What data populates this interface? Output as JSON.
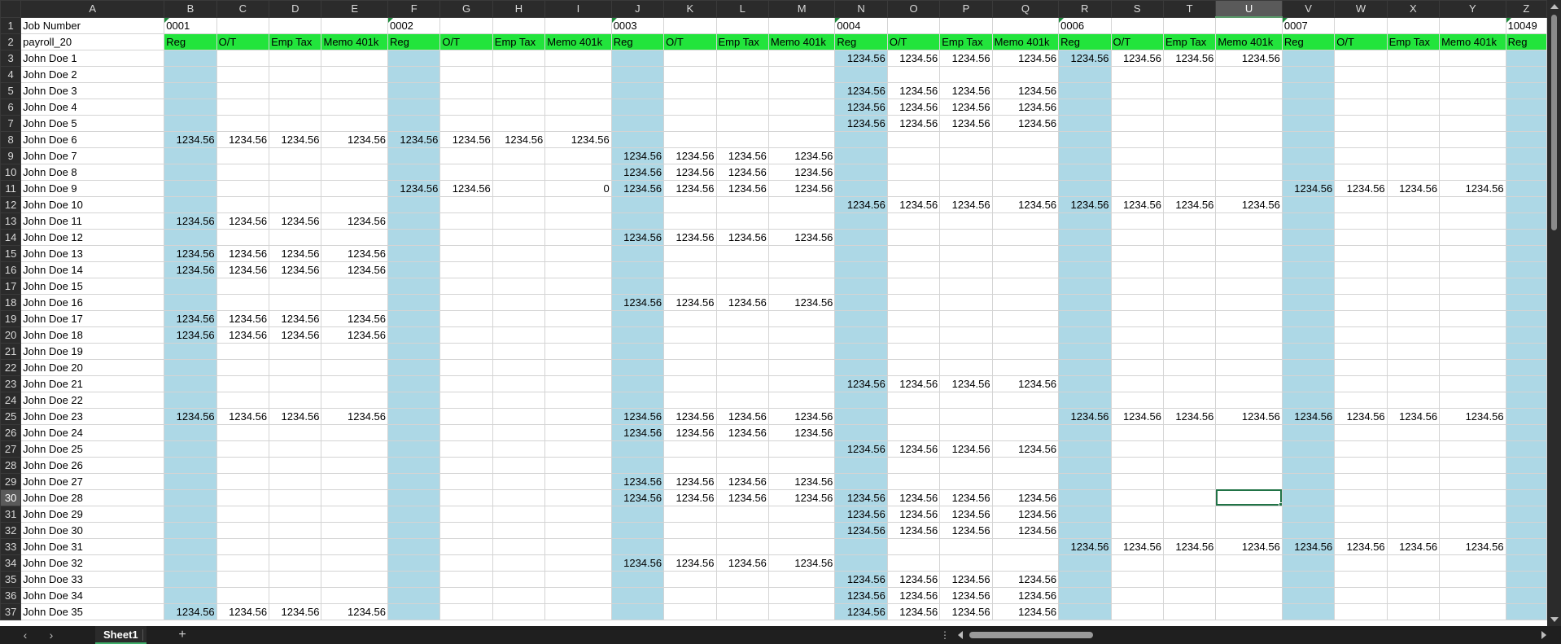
{
  "columns": [
    "A",
    "B",
    "C",
    "D",
    "E",
    "F",
    "G",
    "H",
    "I",
    "J",
    "K",
    "L",
    "M",
    "N",
    "O",
    "P",
    "Q",
    "R",
    "S",
    "T",
    "U",
    "V",
    "W",
    "X",
    "Y",
    "Z"
  ],
  "selected_column": "U",
  "selected_row": 30,
  "active_cell": "U30",
  "job_row": {
    "label": "Job Number",
    "jobs": [
      {
        "col": "B",
        "value": "0001"
      },
      {
        "col": "F",
        "value": "0002"
      },
      {
        "col": "J",
        "value": "0003"
      },
      {
        "col": "N",
        "value": "0004"
      },
      {
        "col": "R",
        "value": "0006"
      },
      {
        "col": "V",
        "value": "0007"
      },
      {
        "col": "Z",
        "value": "10049"
      }
    ]
  },
  "header_row": {
    "label": "payroll_20",
    "cells": [
      "Reg",
      "O/T",
      "Emp Tax",
      "Memo 401k",
      "Reg",
      "O/T",
      "Emp Tax",
      "Memo 401k",
      "Reg",
      "O/T",
      "Emp Tax",
      "Memo 401k",
      "Reg",
      "O/T",
      "Emp Tax",
      "Memo 401k",
      "Reg",
      "O/T",
      "Emp Tax",
      "Memo 401k",
      "Reg",
      "O/T",
      "Emp Tax",
      "Memo 401k",
      "Reg"
    ]
  },
  "rows": [
    {
      "n": 3,
      "name": "John Doe 1",
      "v": [
        "",
        "",
        "",
        "",
        "",
        "",
        "",
        "",
        "",
        "",
        "",
        "",
        "1234.56",
        "1234.56",
        "1234.56",
        "1234.56",
        "1234.56",
        "1234.56",
        "1234.56",
        "1234.56",
        "",
        "",
        "",
        "",
        ""
      ]
    },
    {
      "n": 4,
      "name": "John Doe 2",
      "v": [
        "",
        "",
        "",
        "",
        "",
        "",
        "",
        "",
        "",
        "",
        "",
        "",
        "",
        "",
        "",
        "",
        "",
        "",
        "",
        "",
        "",
        "",
        "",
        "",
        ""
      ]
    },
    {
      "n": 5,
      "name": "John Doe 3",
      "v": [
        "",
        "",
        "",
        "",
        "",
        "",
        "",
        "",
        "",
        "",
        "",
        "",
        "1234.56",
        "1234.56",
        "1234.56",
        "1234.56",
        "",
        "",
        "",
        "",
        "",
        "",
        "",
        "",
        ""
      ]
    },
    {
      "n": 6,
      "name": "John Doe 4",
      "v": [
        "",
        "",
        "",
        "",
        "",
        "",
        "",
        "",
        "",
        "",
        "",
        "",
        "1234.56",
        "1234.56",
        "1234.56",
        "1234.56",
        "",
        "",
        "",
        "",
        "",
        "",
        "",
        "",
        ""
      ]
    },
    {
      "n": 7,
      "name": "John Doe 5",
      "v": [
        "",
        "",
        "",
        "",
        "",
        "",
        "",
        "",
        "",
        "",
        "",
        "",
        "1234.56",
        "1234.56",
        "1234.56",
        "1234.56",
        "",
        "",
        "",
        "",
        "",
        "",
        "",
        "",
        ""
      ]
    },
    {
      "n": 8,
      "name": "John Doe 6",
      "v": [
        "1234.56",
        "1234.56",
        "1234.56",
        "1234.56",
        "1234.56",
        "1234.56",
        "1234.56",
        "1234.56",
        "",
        "",
        "",
        "",
        "",
        "",
        "",
        "",
        "",
        "",
        "",
        "",
        "",
        "",
        "",
        "",
        ""
      ]
    },
    {
      "n": 9,
      "name": "John Doe 7",
      "v": [
        "",
        "",
        "",
        "",
        "",
        "",
        "",
        "",
        "1234.56",
        "1234.56",
        "1234.56",
        "1234.56",
        "",
        "",
        "",
        "",
        "",
        "",
        "",
        "",
        "",
        "",
        "",
        "",
        ""
      ]
    },
    {
      "n": 10,
      "name": "John Doe 8",
      "v": [
        "",
        "",
        "",
        "",
        "",
        "",
        "",
        "",
        "1234.56",
        "1234.56",
        "1234.56",
        "1234.56",
        "",
        "",
        "",
        "",
        "",
        "",
        "",
        "",
        "",
        "",
        "",
        "",
        ""
      ]
    },
    {
      "n": 11,
      "name": "John Doe 9",
      "v": [
        "",
        "",
        "",
        "",
        "1234.56",
        "1234.56",
        "",
        "0",
        "1234.56",
        "1234.56",
        "1234.56",
        "1234.56",
        "",
        "",
        "",
        "",
        "",
        "",
        "",
        "",
        "1234.56",
        "1234.56",
        "1234.56",
        "1234.56",
        ""
      ]
    },
    {
      "n": 12,
      "name": "John Doe 10",
      "v": [
        "",
        "",
        "",
        "",
        "",
        "",
        "",
        "",
        "",
        "",
        "",
        "",
        "1234.56",
        "1234.56",
        "1234.56",
        "1234.56",
        "1234.56",
        "1234.56",
        "1234.56",
        "1234.56",
        "",
        "",
        "",
        "",
        ""
      ]
    },
    {
      "n": 13,
      "name": "John Doe 11",
      "v": [
        "1234.56",
        "1234.56",
        "1234.56",
        "1234.56",
        "",
        "",
        "",
        "",
        "",
        "",
        "",
        "",
        "",
        "",
        "",
        "",
        "",
        "",
        "",
        "",
        "",
        "",
        "",
        "",
        ""
      ]
    },
    {
      "n": 14,
      "name": "John Doe 12",
      "v": [
        "",
        "",
        "",
        "",
        "",
        "",
        "",
        "",
        "1234.56",
        "1234.56",
        "1234.56",
        "1234.56",
        "",
        "",
        "",
        "",
        "",
        "",
        "",
        "",
        "",
        "",
        "",
        "",
        ""
      ]
    },
    {
      "n": 15,
      "name": "John Doe 13",
      "v": [
        "1234.56",
        "1234.56",
        "1234.56",
        "1234.56",
        "",
        "",
        "",
        "",
        "",
        "",
        "",
        "",
        "",
        "",
        "",
        "",
        "",
        "",
        "",
        "",
        "",
        "",
        "",
        "",
        ""
      ]
    },
    {
      "n": 16,
      "name": "John Doe 14",
      "v": [
        "1234.56",
        "1234.56",
        "1234.56",
        "1234.56",
        "",
        "",
        "",
        "",
        "",
        "",
        "",
        "",
        "",
        "",
        "",
        "",
        "",
        "",
        "",
        "",
        "",
        "",
        "",
        "",
        ""
      ]
    },
    {
      "n": 17,
      "name": "John Doe 15",
      "v": [
        "",
        "",
        "",
        "",
        "",
        "",
        "",
        "",
        "",
        "",
        "",
        "",
        "",
        "",
        "",
        "",
        "",
        "",
        "",
        "",
        "",
        "",
        "",
        "",
        ""
      ]
    },
    {
      "n": 18,
      "name": "John Doe 16",
      "v": [
        "",
        "",
        "",
        "",
        "",
        "",
        "",
        "",
        "1234.56",
        "1234.56",
        "1234.56",
        "1234.56",
        "",
        "",
        "",
        "",
        "",
        "",
        "",
        "",
        "",
        "",
        "",
        "",
        ""
      ]
    },
    {
      "n": 19,
      "name": "John Doe 17",
      "v": [
        "1234.56",
        "1234.56",
        "1234.56",
        "1234.56",
        "",
        "",
        "",
        "",
        "",
        "",
        "",
        "",
        "",
        "",
        "",
        "",
        "",
        "",
        "",
        "",
        "",
        "",
        "",
        "",
        ""
      ]
    },
    {
      "n": 20,
      "name": "John Doe 18",
      "v": [
        "1234.56",
        "1234.56",
        "1234.56",
        "1234.56",
        "",
        "",
        "",
        "",
        "",
        "",
        "",
        "",
        "",
        "",
        "",
        "",
        "",
        "",
        "",
        "",
        "",
        "",
        "",
        "",
        ""
      ]
    },
    {
      "n": 21,
      "name": "John Doe 19",
      "v": [
        "",
        "",
        "",
        "",
        "",
        "",
        "",
        "",
        "",
        "",
        "",
        "",
        "",
        "",
        "",
        "",
        "",
        "",
        "",
        "",
        "",
        "",
        "",
        "",
        ""
      ]
    },
    {
      "n": 22,
      "name": "John Doe 20",
      "v": [
        "",
        "",
        "",
        "",
        "",
        "",
        "",
        "",
        "",
        "",
        "",
        "",
        "",
        "",
        "",
        "",
        "",
        "",
        "",
        "",
        "",
        "",
        "",
        "",
        ""
      ]
    },
    {
      "n": 23,
      "name": "John Doe 21",
      "v": [
        "",
        "",
        "",
        "",
        "",
        "",
        "",
        "",
        "",
        "",
        "",
        "",
        "1234.56",
        "1234.56",
        "1234.56",
        "1234.56",
        "",
        "",
        "",
        "",
        "",
        "",
        "",
        "",
        ""
      ]
    },
    {
      "n": 24,
      "name": "John Doe 22",
      "v": [
        "",
        "",
        "",
        "",
        "",
        "",
        "",
        "",
        "",
        "",
        "",
        "",
        "",
        "",
        "",
        "",
        "",
        "",
        "",
        "",
        "",
        "",
        "",
        "",
        ""
      ]
    },
    {
      "n": 25,
      "name": "John Doe 23",
      "v": [
        "1234.56",
        "1234.56",
        "1234.56",
        "1234.56",
        "",
        "",
        "",
        "",
        "1234.56",
        "1234.56",
        "1234.56",
        "1234.56",
        "",
        "",
        "",
        "",
        "1234.56",
        "1234.56",
        "1234.56",
        "1234.56",
        "1234.56",
        "1234.56",
        "1234.56",
        "1234.56",
        ""
      ]
    },
    {
      "n": 26,
      "name": "John Doe 24",
      "v": [
        "",
        "",
        "",
        "",
        "",
        "",
        "",
        "",
        "1234.56",
        "1234.56",
        "1234.56",
        "1234.56",
        "",
        "",
        "",
        "",
        "",
        "",
        "",
        "",
        "",
        "",
        "",
        "",
        ""
      ]
    },
    {
      "n": 27,
      "name": "John Doe 25",
      "v": [
        "",
        "",
        "",
        "",
        "",
        "",
        "",
        "",
        "",
        "",
        "",
        "",
        "1234.56",
        "1234.56",
        "1234.56",
        "1234.56",
        "",
        "",
        "",
        "",
        "",
        "",
        "",
        "",
        ""
      ]
    },
    {
      "n": 28,
      "name": "John Doe 26",
      "v": [
        "",
        "",
        "",
        "",
        "",
        "",
        "",
        "",
        "",
        "",
        "",
        "",
        "",
        "",
        "",
        "",
        "",
        "",
        "",
        "",
        "",
        "",
        "",
        "",
        ""
      ]
    },
    {
      "n": 29,
      "name": "John Doe 27",
      "v": [
        "",
        "",
        "",
        "",
        "",
        "",
        "",
        "",
        "1234.56",
        "1234.56",
        "1234.56",
        "1234.56",
        "",
        "",
        "",
        "",
        "",
        "",
        "",
        "",
        "",
        "",
        "",
        "",
        ""
      ]
    },
    {
      "n": 30,
      "name": "John Doe 28",
      "v": [
        "",
        "",
        "",
        "",
        "",
        "",
        "",
        "",
        "1234.56",
        "1234.56",
        "1234.56",
        "1234.56",
        "1234.56",
        "1234.56",
        "1234.56",
        "1234.56",
        "",
        "",
        "",
        "",
        "",
        "",
        "",
        "",
        ""
      ]
    },
    {
      "n": 31,
      "name": "John Doe 29",
      "v": [
        "",
        "",
        "",
        "",
        "",
        "",
        "",
        "",
        "",
        "",
        "",
        "",
        "1234.56",
        "1234.56",
        "1234.56",
        "1234.56",
        "",
        "",
        "",
        "",
        "",
        "",
        "",
        "",
        ""
      ]
    },
    {
      "n": 32,
      "name": "John Doe 30",
      "v": [
        "",
        "",
        "",
        "",
        "",
        "",
        "",
        "",
        "",
        "",
        "",
        "",
        "1234.56",
        "1234.56",
        "1234.56",
        "1234.56",
        "",
        "",
        "",
        "",
        "",
        "",
        "",
        "",
        ""
      ]
    },
    {
      "n": 33,
      "name": "John Doe 31",
      "v": [
        "",
        "",
        "",
        "",
        "",
        "",
        "",
        "",
        "",
        "",
        "",
        "",
        "",
        "",
        "",
        "",
        "1234.56",
        "1234.56",
        "1234.56",
        "1234.56",
        "1234.56",
        "1234.56",
        "1234.56",
        "1234.56",
        ""
      ]
    },
    {
      "n": 34,
      "name": "John Doe 32",
      "v": [
        "",
        "",
        "",
        "",
        "",
        "",
        "",
        "",
        "1234.56",
        "1234.56",
        "1234.56",
        "1234.56",
        "",
        "",
        "",
        "",
        "",
        "",
        "",
        "",
        "",
        "",
        "",
        "",
        ""
      ]
    },
    {
      "n": 35,
      "name": "John Doe 33",
      "v": [
        "",
        "",
        "",
        "",
        "",
        "",
        "",
        "",
        "",
        "",
        "",
        "",
        "1234.56",
        "1234.56",
        "1234.56",
        "1234.56",
        "",
        "",
        "",
        "",
        "",
        "",
        "",
        "",
        ""
      ]
    },
    {
      "n": 36,
      "name": "John Doe 34",
      "v": [
        "",
        "",
        "",
        "",
        "",
        "",
        "",
        "",
        "",
        "",
        "",
        "",
        "1234.56",
        "1234.56",
        "1234.56",
        "1234.56",
        "",
        "",
        "",
        "",
        "",
        "",
        "",
        "",
        ""
      ]
    },
    {
      "n": 37,
      "name": "John Doe 35",
      "v": [
        "1234.56",
        "1234.56",
        "1234.56",
        "1234.56",
        "",
        "",
        "",
        "",
        "",
        "",
        "",
        "",
        "1234.56",
        "1234.56",
        "1234.56",
        "1234.56",
        "",
        "",
        "",
        "",
        "",
        "",
        "",
        "",
        ""
      ]
    }
  ],
  "sheet_tab": {
    "label": "Sheet1"
  },
  "colors": {
    "highlight": "#add8e6",
    "header_band": "#22e43c",
    "selection": "#217346"
  },
  "icons": {
    "prev": "chevron-left-icon",
    "next": "chevron-right-icon",
    "add": "plus-icon",
    "more": "more-dots-icon"
  }
}
